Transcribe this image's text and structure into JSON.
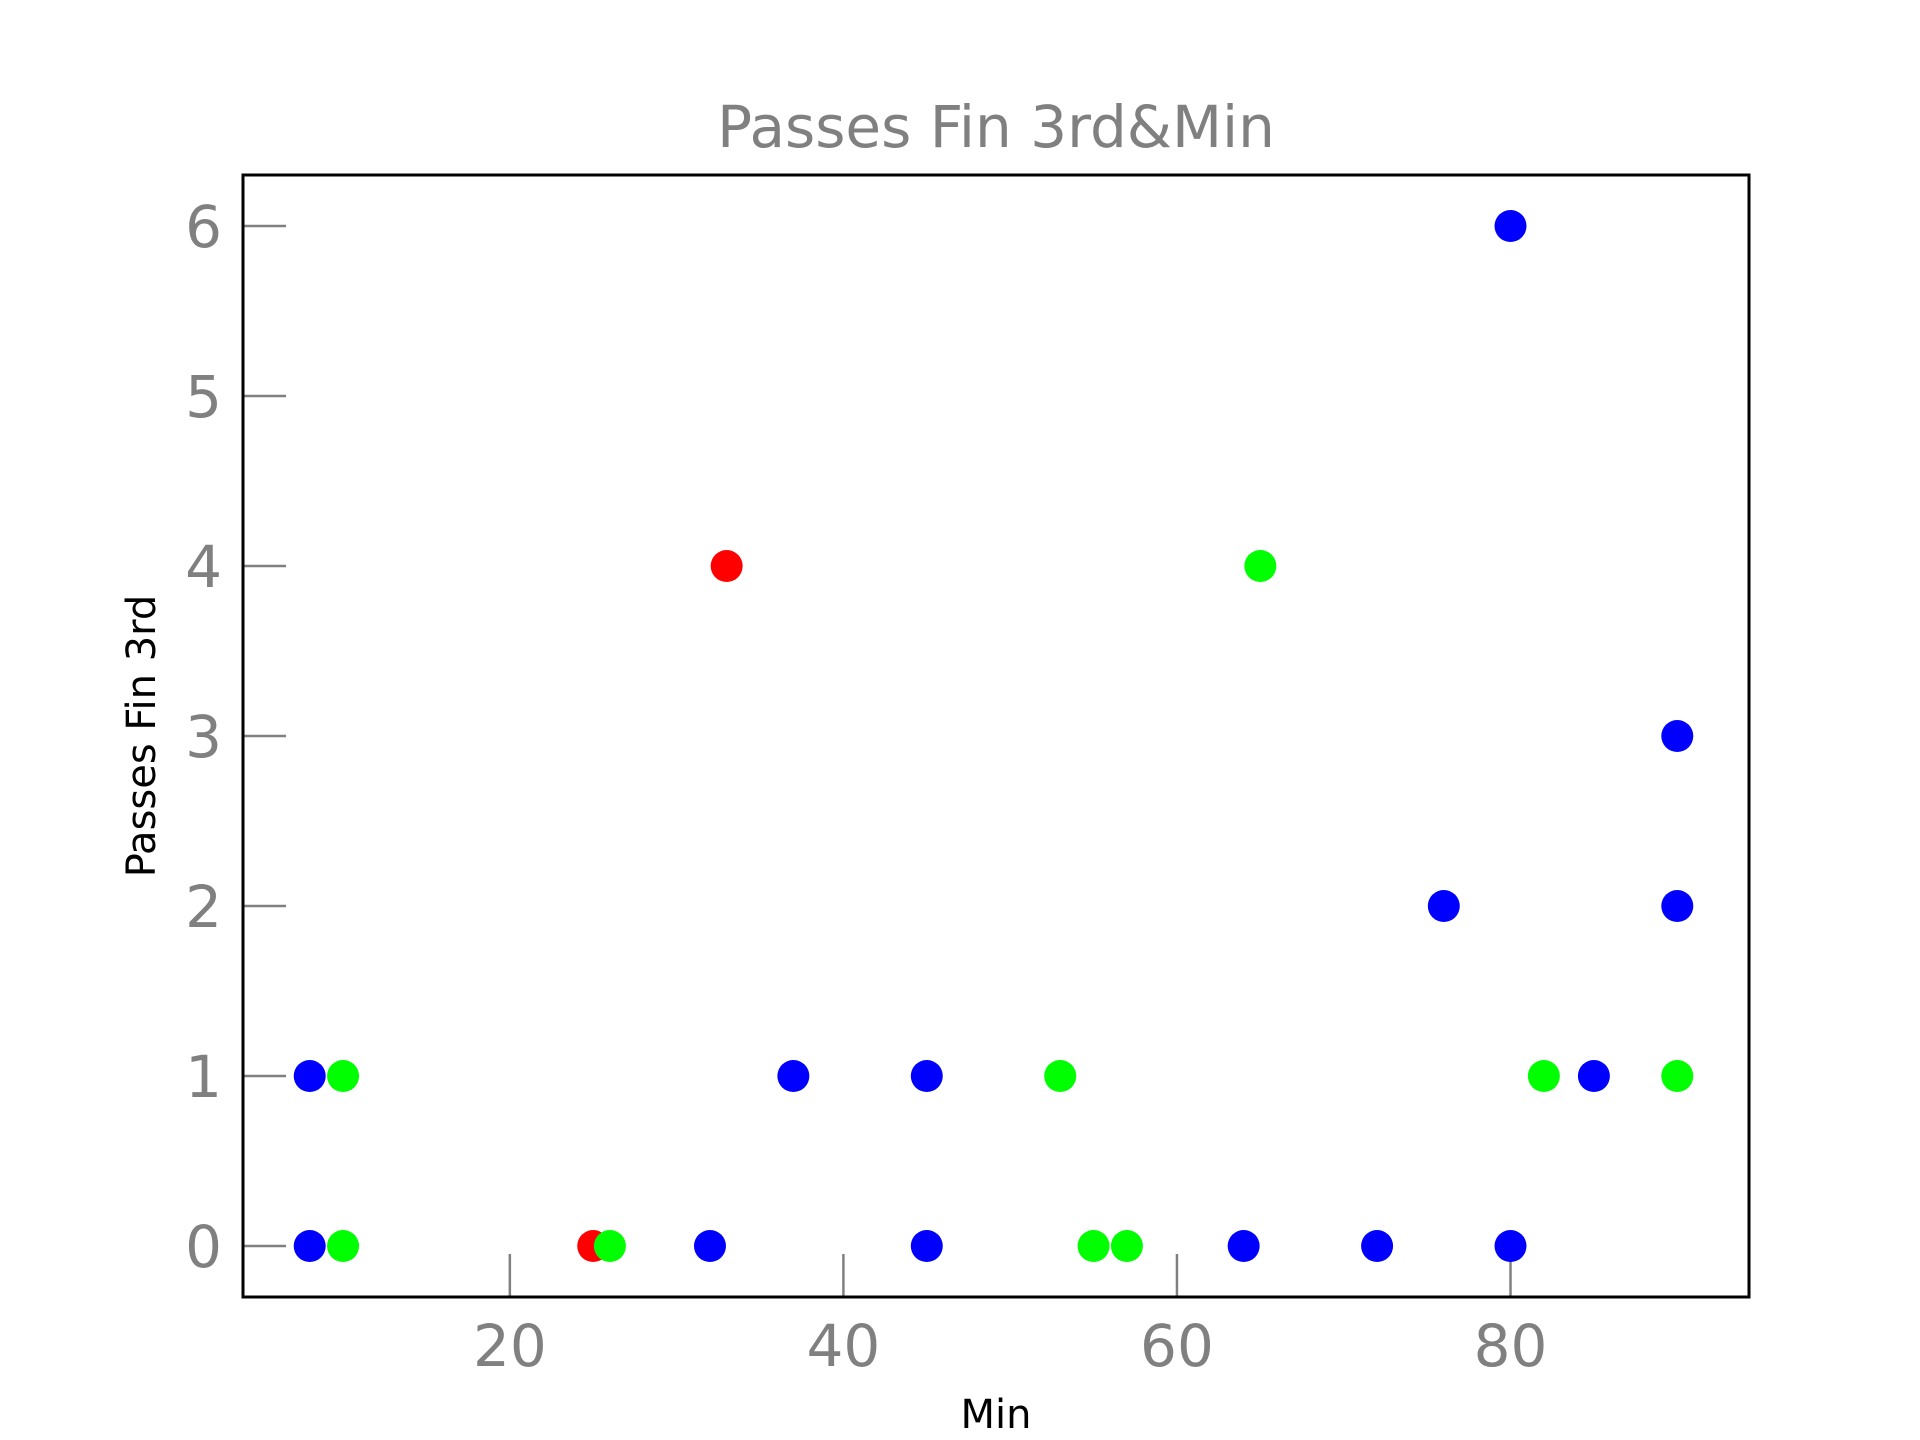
{
  "chart_data": {
    "type": "scatter",
    "title": "Passes Fin 3rd&Min",
    "xlabel": "Min",
    "ylabel": "Passes Fin 3rd",
    "xlim": [
      4,
      94.3
    ],
    "ylim": [
      -0.3,
      6.3
    ],
    "xticks": [
      20,
      40,
      60,
      80
    ],
    "yticks": [
      0,
      1,
      2,
      3,
      4,
      5,
      6
    ],
    "grid": false,
    "colors": {
      "blue": "#0000ff",
      "green": "#00ff00",
      "red": "#ff0000"
    },
    "points": [
      {
        "x": 8,
        "y": 1,
        "color": "blue"
      },
      {
        "x": 8,
        "y": 0,
        "color": "blue"
      },
      {
        "x": 10,
        "y": 1,
        "color": "green"
      },
      {
        "x": 10,
        "y": 0,
        "color": "green"
      },
      {
        "x": 25,
        "y": 0,
        "color": "red"
      },
      {
        "x": 26,
        "y": 0,
        "color": "green"
      },
      {
        "x": 32,
        "y": 0,
        "color": "blue"
      },
      {
        "x": 33,
        "y": 4,
        "color": "red"
      },
      {
        "x": 37,
        "y": 1,
        "color": "blue"
      },
      {
        "x": 45,
        "y": 1,
        "color": "blue"
      },
      {
        "x": 45,
        "y": 0,
        "color": "blue"
      },
      {
        "x": 53,
        "y": 1,
        "color": "green"
      },
      {
        "x": 55,
        "y": 0,
        "color": "green"
      },
      {
        "x": 57,
        "y": 0,
        "color": "green"
      },
      {
        "x": 64,
        "y": 0,
        "color": "blue"
      },
      {
        "x": 65,
        "y": 4,
        "color": "green"
      },
      {
        "x": 72,
        "y": 0,
        "color": "blue"
      },
      {
        "x": 76,
        "y": 2,
        "color": "blue"
      },
      {
        "x": 80,
        "y": 6,
        "color": "blue"
      },
      {
        "x": 80,
        "y": 0,
        "color": "blue"
      },
      {
        "x": 82,
        "y": 1,
        "color": "green"
      },
      {
        "x": 85,
        "y": 1,
        "color": "blue"
      },
      {
        "x": 90,
        "y": 3,
        "color": "blue"
      },
      {
        "x": 90,
        "y": 2,
        "color": "blue"
      },
      {
        "x": 90,
        "y": 1,
        "color": "green"
      }
    ]
  }
}
